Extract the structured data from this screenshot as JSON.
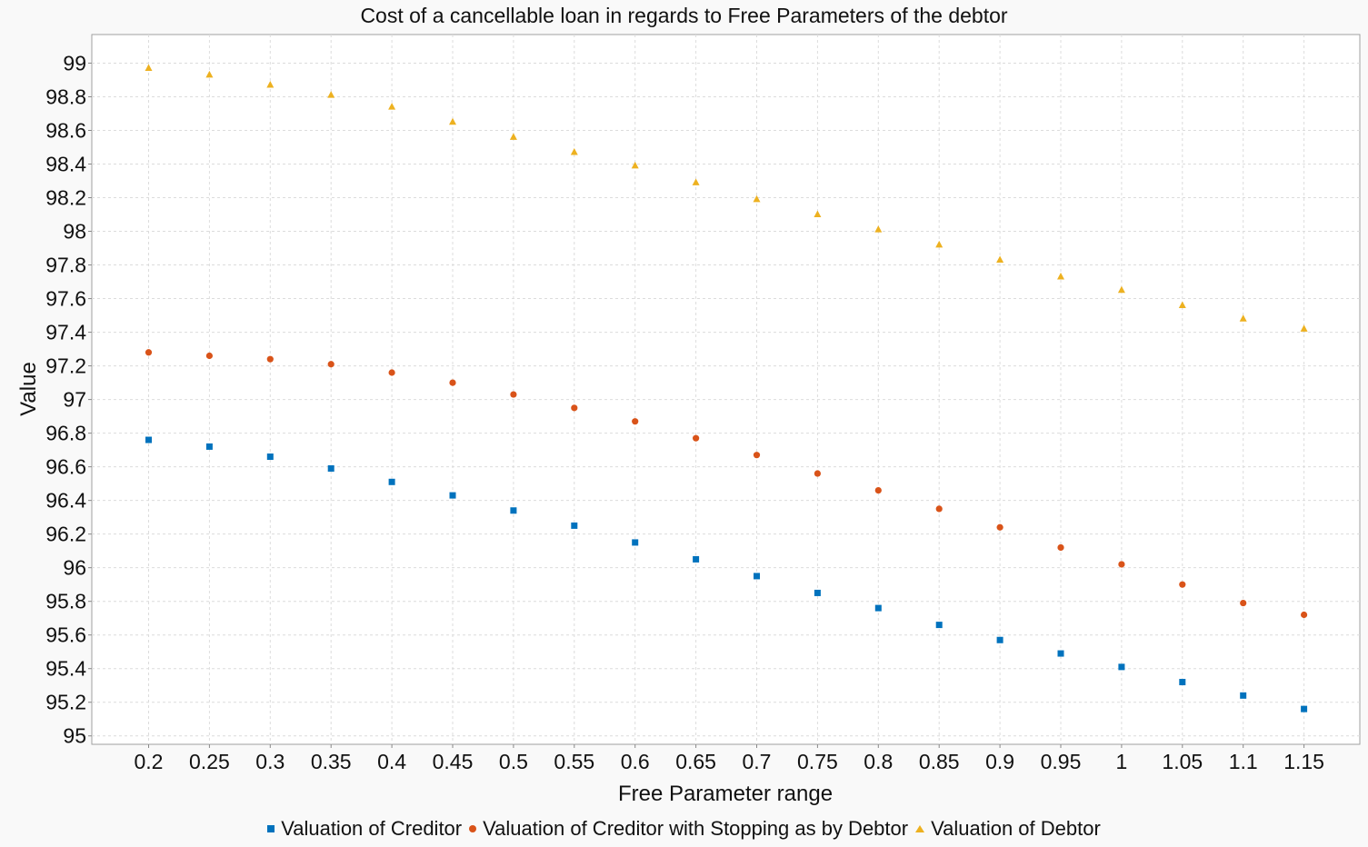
{
  "chart_data": {
    "type": "scatter",
    "title": "Cost of a cancellable loan in regards to Free Parameters of the debtor",
    "xlabel": "Free Parameter range",
    "ylabel": "Value",
    "x": [
      0.2,
      0.25,
      0.3,
      0.35,
      0.4,
      0.45,
      0.5,
      0.55,
      0.6,
      0.65,
      0.7,
      0.75,
      0.8,
      0.85,
      0.9,
      0.95,
      1,
      1.05,
      1.1,
      1.15
    ],
    "x_tick_labels": [
      "0.2",
      "0.25",
      "0.3",
      "0.35",
      "0.4",
      "0.45",
      "0.5",
      "0.55",
      "0.6",
      "0.65",
      "0.7",
      "0.75",
      "0.8",
      "0.85",
      "0.9",
      "0.95",
      "1",
      "1.05",
      "1.1",
      "1.15"
    ],
    "y_ticks": [
      95,
      95.2,
      95.4,
      95.6,
      95.8,
      96,
      96.2,
      96.4,
      96.6,
      96.8,
      97,
      97.2,
      97.4,
      97.6,
      97.8,
      98,
      98.2,
      98.4,
      98.6,
      98.8,
      99
    ],
    "y_tick_labels": [
      "95",
      "95.2",
      "95.4",
      "95.6",
      "95.8",
      "96",
      "96.2",
      "96.4",
      "96.6",
      "96.8",
      "97",
      "97.2",
      "97.4",
      "97.6",
      "97.8",
      "98",
      "98.2",
      "98.4",
      "98.6",
      "98.8",
      "99"
    ],
    "ylim": [
      94.95,
      99.17
    ],
    "grid": true,
    "legend_position": "bottom",
    "series": [
      {
        "name": "Valuation of Creditor",
        "marker": "square",
        "color": "#0072bd",
        "values": [
          96.76,
          96.72,
          96.66,
          96.59,
          96.51,
          96.43,
          96.34,
          96.25,
          96.15,
          96.05,
          95.95,
          95.85,
          95.76,
          95.66,
          95.57,
          95.49,
          95.41,
          95.32,
          95.24,
          95.16
        ]
      },
      {
        "name": "Valuation of Creditor with Stopping as by Debtor",
        "marker": "circle",
        "color": "#d95319",
        "values": [
          97.28,
          97.26,
          97.24,
          97.21,
          97.16,
          97.1,
          97.03,
          96.95,
          96.87,
          96.77,
          96.67,
          96.56,
          96.46,
          96.35,
          96.24,
          96.12,
          96.02,
          95.9,
          95.79,
          95.72
        ]
      },
      {
        "name": "Valuation of Debtor",
        "marker": "triangle",
        "color": "#edb120",
        "values": [
          98.97,
          98.93,
          98.87,
          98.81,
          98.74,
          98.65,
          98.56,
          98.47,
          98.39,
          98.29,
          98.19,
          98.1,
          98.01,
          97.92,
          97.83,
          97.73,
          97.65,
          97.56,
          97.48,
          97.42
        ]
      }
    ]
  }
}
